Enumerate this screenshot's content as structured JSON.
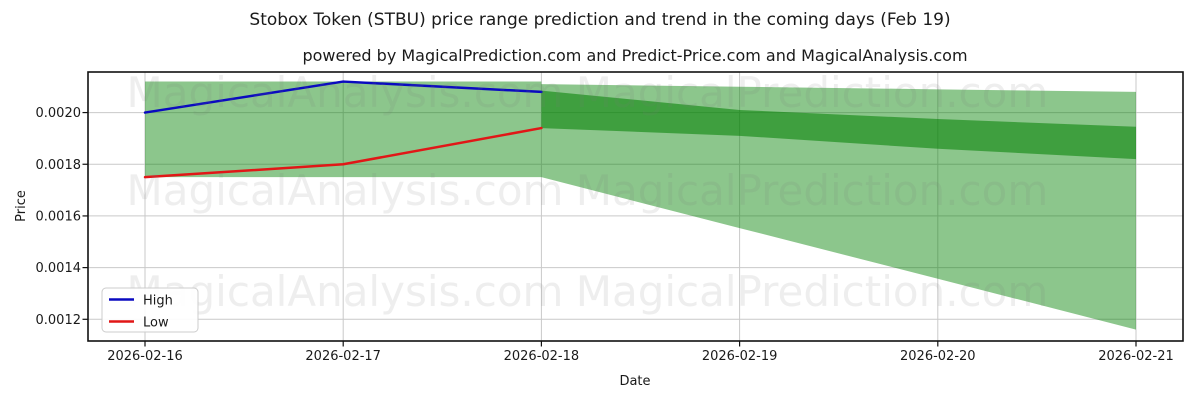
{
  "watermark": {
    "left_text": "MagicalAnalysis.com",
    "right_text": "MagicalPrediction.com"
  },
  "colors": {
    "high": "#0a0ac0",
    "low": "#e11717",
    "band_green": "#008000",
    "grid": "#c9c9c9",
    "frame": "#111111",
    "text": "#1a1a1a",
    "watermark": "#787878",
    "legend_border": "#cccccc"
  },
  "chart_data": {
    "type": "line",
    "title": "Stobox Token (STBU) price range prediction and trend in the coming days (Feb 19)",
    "subtitle": "powered by MagicalPrediction.com and Predict-Price.com and MagicalAnalysis.com",
    "x": [
      "2026-02-16",
      "2026-02-17",
      "2026-02-18",
      "2026-02-19",
      "2026-02-20",
      "2026-02-21"
    ],
    "xlabel": "Date",
    "ylabel": "Price",
    "ylim": [
      0.001116,
      0.002157
    ],
    "yticks": [
      0.0012,
      0.0014,
      0.0016,
      0.0018,
      0.002
    ],
    "ytick_labels": [
      "0.0012",
      "0.0014",
      "0.0016",
      "0.0018",
      "0.0020"
    ],
    "grid": true,
    "series": [
      {
        "name": "High",
        "color_key": "high",
        "x_idx": [
          0,
          1,
          2
        ],
        "values": [
          0.002,
          0.00212,
          0.00208
        ]
      },
      {
        "name": "Low",
        "color_key": "low",
        "x_idx": [
          0,
          1,
          2
        ],
        "values": [
          0.00175,
          0.0018,
          0.00194
        ]
      }
    ],
    "bands": [
      {
        "name": "observed-range",
        "color_key": "band_green",
        "opacity": 0.45,
        "x_idx": [
          0,
          2
        ],
        "top": [
          0.00212,
          0.00212
        ],
        "bottom": [
          0.00175,
          0.00175
        ]
      },
      {
        "name": "forecast-range-outer",
        "color_key": "band_green",
        "opacity": 0.45,
        "x_idx": [
          2,
          3,
          4,
          5
        ],
        "top": [
          0.00211,
          0.0021,
          0.00209,
          0.00208
        ],
        "bottom": [
          0.00175,
          0.001553,
          0.001357,
          0.00116
        ]
      },
      {
        "name": "forecast-range-inner",
        "color_key": "band_green",
        "opacity": 0.55,
        "x_idx": [
          2,
          3,
          4,
          5
        ],
        "top": [
          0.002085,
          0.00201,
          0.001975,
          0.001945
        ],
        "bottom": [
          0.00194,
          0.00191,
          0.00186,
          0.00182
        ]
      }
    ],
    "legend": {
      "position": "lower left",
      "entries": [
        {
          "label": "High",
          "color_key": "high"
        },
        {
          "label": "Low",
          "color_key": "low"
        }
      ]
    }
  }
}
